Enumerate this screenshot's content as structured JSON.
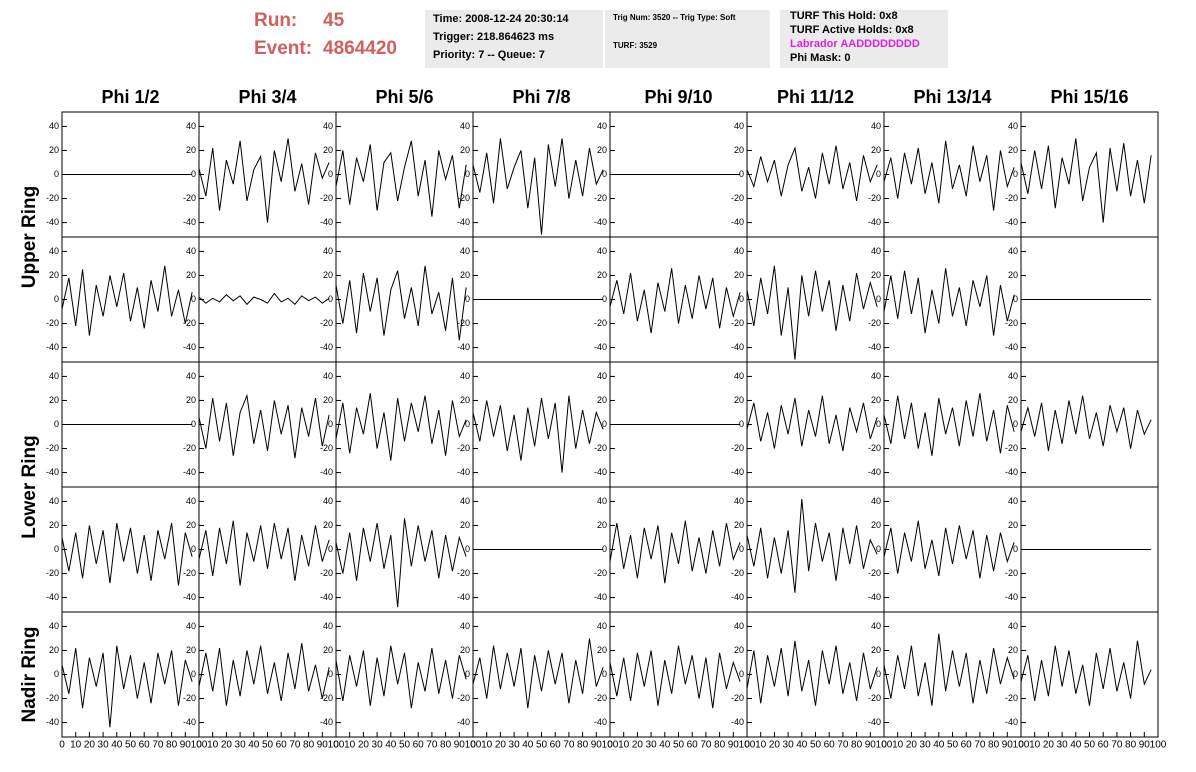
{
  "header": {
    "run": {
      "label": "Run:",
      "value": 45
    },
    "event": {
      "label": "Event:",
      "value": 4864420
    }
  },
  "info": {
    "time": "Time: 2008-12-24 20:30:14",
    "trigger": "Trigger: 218.864623 ms",
    "priority": "Priority: 7 -- Queue: 7",
    "trig_num": "Trig Num: 3520 -- Trig Type: Soft",
    "turf": "TURF: 3529",
    "turf_hold": "TURF This Hold: 0x8",
    "turf_active": "TURF Active Holds: 0x8",
    "labrador": "Labrador AADDDDDDDD",
    "phi_mask": "Phi Mask: 0"
  },
  "chart_data": {
    "type": "waveform-grid",
    "columns": [
      "Phi 1/2",
      "Phi 3/4",
      "Phi 5/6",
      "Phi 7/8",
      "Phi 9/10",
      "Phi 11/12",
      "Phi 13/14",
      "Phi 15/16"
    ],
    "rows": [
      "Upper Ring",
      "Lower Ring",
      "Nadir Ring"
    ],
    "xlim": [
      0,
      100
    ],
    "ylim": [
      -52,
      52
    ],
    "xticks": [
      0,
      10,
      20,
      30,
      40,
      50,
      60,
      70,
      80,
      90,
      100
    ],
    "yticks": [
      -40,
      -20,
      0,
      20,
      40
    ],
    "color": "#000000",
    "x": [
      0,
      5,
      10,
      15,
      20,
      25,
      30,
      35,
      40,
      45,
      50,
      55,
      60,
      65,
      70,
      75,
      80,
      85,
      90,
      95
    ],
    "waveforms": [
      [
        [
          0,
          0,
          0,
          0,
          0,
          0,
          0,
          0,
          0,
          0,
          0,
          0,
          0,
          0,
          0,
          0,
          0,
          0,
          0,
          0
        ],
        [
          5,
          -18,
          22,
          -30,
          12,
          -8,
          28,
          -22,
          4,
          15,
          -40,
          20,
          -6,
          30,
          -14,
          9,
          -25,
          18,
          -3,
          10
        ],
        [
          -10,
          20,
          -25,
          14,
          -6,
          25,
          -30,
          10,
          18,
          -22,
          6,
          28,
          -18,
          12,
          -35,
          20,
          -4,
          16,
          -28,
          8
        ],
        [
          8,
          -15,
          18,
          -24,
          30,
          -12,
          6,
          20,
          -28,
          14,
          -50,
          25,
          -10,
          30,
          -20,
          12,
          -18,
          22,
          -8,
          4
        ],
        [
          0,
          0,
          0,
          0,
          0,
          0,
          0,
          0,
          0,
          0,
          0,
          0,
          0,
          0,
          0,
          0,
          0,
          0,
          0,
          0
        ],
        [
          4,
          -10,
          15,
          -6,
          12,
          -18,
          8,
          22,
          -14,
          6,
          -20,
          18,
          -8,
          24,
          -12,
          10,
          -22,
          16,
          -6,
          8
        ],
        [
          -6,
          14,
          -20,
          18,
          -8,
          22,
          -16,
          10,
          -24,
          28,
          -12,
          8,
          -18,
          24,
          -6,
          16,
          -30,
          20,
          -10,
          6
        ],
        [
          10,
          -16,
          20,
          -12,
          24,
          -28,
          14,
          -8,
          30,
          -22,
          6,
          18,
          -40,
          22,
          -14,
          26,
          -18,
          12,
          -24,
          16
        ]
      ],
      [
        [
          -8,
          18,
          -22,
          25,
          -30,
          12,
          -14,
          20,
          -6,
          22,
          -18,
          10,
          -24,
          16,
          -10,
          28,
          -14,
          8,
          -20,
          6
        ],
        [
          2,
          -3,
          1,
          -2,
          4,
          -1,
          3,
          -4,
          2,
          0,
          -3,
          5,
          -2,
          1,
          -4,
          3,
          -1,
          2,
          -3,
          1
        ],
        [
          12,
          -20,
          16,
          -28,
          22,
          -10,
          18,
          -30,
          8,
          24,
          -16,
          10,
          -22,
          28,
          -12,
          6,
          -26,
          18,
          -34,
          10
        ],
        [
          0,
          0,
          0,
          0,
          0,
          0,
          0,
          0,
          0,
          0,
          0,
          0,
          0,
          0,
          0,
          0,
          0,
          0,
          0,
          0
        ],
        [
          -6,
          16,
          -12,
          22,
          -18,
          8,
          -28,
          14,
          -10,
          26,
          -20,
          12,
          -16,
          20,
          -8,
          18,
          -24,
          10,
          -14,
          6
        ],
        [
          8,
          -22,
          18,
          -12,
          28,
          -30,
          10,
          -50,
          20,
          -14,
          24,
          -10,
          16,
          -26,
          12,
          -18,
          22,
          -8,
          14,
          -6
        ],
        [
          -10,
          20,
          -16,
          24,
          -12,
          18,
          -28,
          8,
          -20,
          26,
          -14,
          10,
          -22,
          16,
          -6,
          20,
          -30,
          12,
          -18,
          4
        ],
        [
          0,
          0,
          0,
          0,
          0,
          0,
          0,
          0,
          0,
          0,
          0,
          0,
          0,
          0,
          0,
          0,
          0,
          0,
          0,
          0
        ]
      ],
      [
        [
          0,
          0,
          0,
          0,
          0,
          0,
          0,
          0,
          0,
          0,
          0,
          0,
          0,
          0,
          0,
          0,
          0,
          0,
          0,
          0
        ],
        [
          6,
          -20,
          22,
          -14,
          18,
          -26,
          10,
          24,
          -16,
          12,
          -22,
          20,
          -8,
          16,
          -28,
          14,
          -10,
          22,
          -18,
          8
        ],
        [
          -12,
          18,
          -24,
          14,
          -8,
          26,
          -20,
          10,
          -30,
          22,
          -14,
          18,
          -6,
          24,
          -16,
          12,
          -26,
          20,
          -10,
          4
        ],
        [
          10,
          -14,
          20,
          -10,
          16,
          -22,
          8,
          -30,
          14,
          -18,
          22,
          -12,
          18,
          -40,
          24,
          -20,
          12,
          -16,
          10,
          -4
        ],
        [
          0,
          0,
          0,
          0,
          0,
          0,
          0,
          0,
          0,
          0,
          0,
          0,
          0,
          0,
          0,
          0,
          0,
          0,
          0,
          0
        ],
        [
          -4,
          18,
          -14,
          10,
          -20,
          16,
          -8,
          22,
          -18,
          12,
          -10,
          24,
          -16,
          8,
          -22,
          14,
          -6,
          18,
          -12,
          6
        ],
        [
          8,
          -16,
          24,
          -12,
          18,
          -20,
          10,
          -26,
          22,
          -8,
          14,
          -18,
          20,
          -10,
          26,
          -14,
          12,
          -24,
          16,
          -6
        ],
        [
          -6,
          14,
          -10,
          18,
          -22,
          12,
          -16,
          20,
          -8,
          24,
          -12,
          10,
          -18,
          16,
          -6,
          14,
          -20,
          12,
          -8,
          4
        ]
      ],
      [
        [
          10,
          -18,
          14,
          -24,
          20,
          -12,
          16,
          -28,
          22,
          -10,
          18,
          -20,
          12,
          -26,
          16,
          -8,
          22,
          -30,
          14,
          -6
        ],
        [
          -8,
          16,
          -22,
          18,
          -12,
          24,
          -30,
          14,
          -10,
          20,
          -16,
          22,
          -8,
          18,
          -26,
          12,
          -14,
          20,
          -10,
          8
        ],
        [
          6,
          -20,
          14,
          -26,
          18,
          -10,
          22,
          -16,
          12,
          -48,
          26,
          -14,
          20,
          -10,
          16,
          -24,
          12,
          -18,
          10,
          -6
        ],
        [
          0,
          0,
          0,
          0,
          0,
          0,
          0,
          0,
          0,
          0,
          0,
          0,
          0,
          0,
          0,
          0,
          0,
          0,
          0,
          0
        ],
        [
          -10,
          22,
          -16,
          12,
          -24,
          18,
          -8,
          20,
          -28,
          14,
          -12,
          24,
          -18,
          10,
          -20,
          16,
          -14,
          22,
          -8,
          6
        ],
        [
          12,
          -14,
          18,
          -24,
          10,
          -20,
          16,
          -36,
          42,
          -18,
          22,
          -10,
          14,
          -26,
          18,
          -12,
          20,
          -16,
          8,
          -4
        ],
        [
          -6,
          18,
          -20,
          14,
          -10,
          24,
          -16,
          8,
          -22,
          18,
          -12,
          20,
          -8,
          16,
          -24,
          12,
          -18,
          14,
          -10,
          6
        ],
        [
          0,
          0,
          0,
          0,
          0,
          0,
          0,
          0,
          0,
          0,
          0,
          0,
          0,
          0,
          0,
          0,
          0,
          0,
          0,
          0
        ]
      ],
      [
        [
          8,
          -16,
          22,
          -28,
          14,
          -10,
          18,
          -44,
          24,
          -12,
          16,
          -20,
          10,
          -24,
          18,
          -8,
          20,
          -26,
          12,
          -6
        ],
        [
          -10,
          18,
          -14,
          22,
          -26,
          12,
          -18,
          20,
          -8,
          24,
          -16,
          10,
          -22,
          18,
          -12,
          26,
          -14,
          8,
          -20,
          6
        ],
        [
          12,
          -22,
          16,
          -10,
          20,
          -26,
          14,
          -18,
          24,
          -8,
          18,
          -28,
          10,
          -14,
          22,
          -16,
          12,
          -20,
          16,
          -4
        ],
        [
          -8,
          14,
          -20,
          24,
          -12,
          18,
          -10,
          22,
          -28,
          16,
          -14,
          20,
          -8,
          18,
          -24,
          12,
          -16,
          30,
          -10,
          6
        ],
        [
          10,
          -18,
          14,
          -22,
          18,
          -10,
          20,
          -26,
          12,
          -16,
          24,
          -8,
          16,
          -20,
          14,
          -28,
          18,
          -12,
          10,
          -6
        ],
        [
          -12,
          20,
          -24,
          16,
          -10,
          22,
          -18,
          28,
          -14,
          12,
          -26,
          20,
          -8,
          24,
          -16,
          10,
          -22,
          18,
          -12,
          6
        ],
        [
          8,
          -20,
          16,
          -12,
          24,
          -18,
          10,
          -26,
          34,
          -14,
          20,
          -10,
          18,
          -24,
          12,
          -16,
          22,
          -8,
          14,
          -4
        ],
        [
          -6,
          16,
          -22,
          12,
          -18,
          24,
          -10,
          20,
          -16,
          8,
          -26,
          18,
          -12,
          22,
          -14,
          10,
          -20,
          28,
          -8,
          4
        ]
      ]
    ]
  }
}
